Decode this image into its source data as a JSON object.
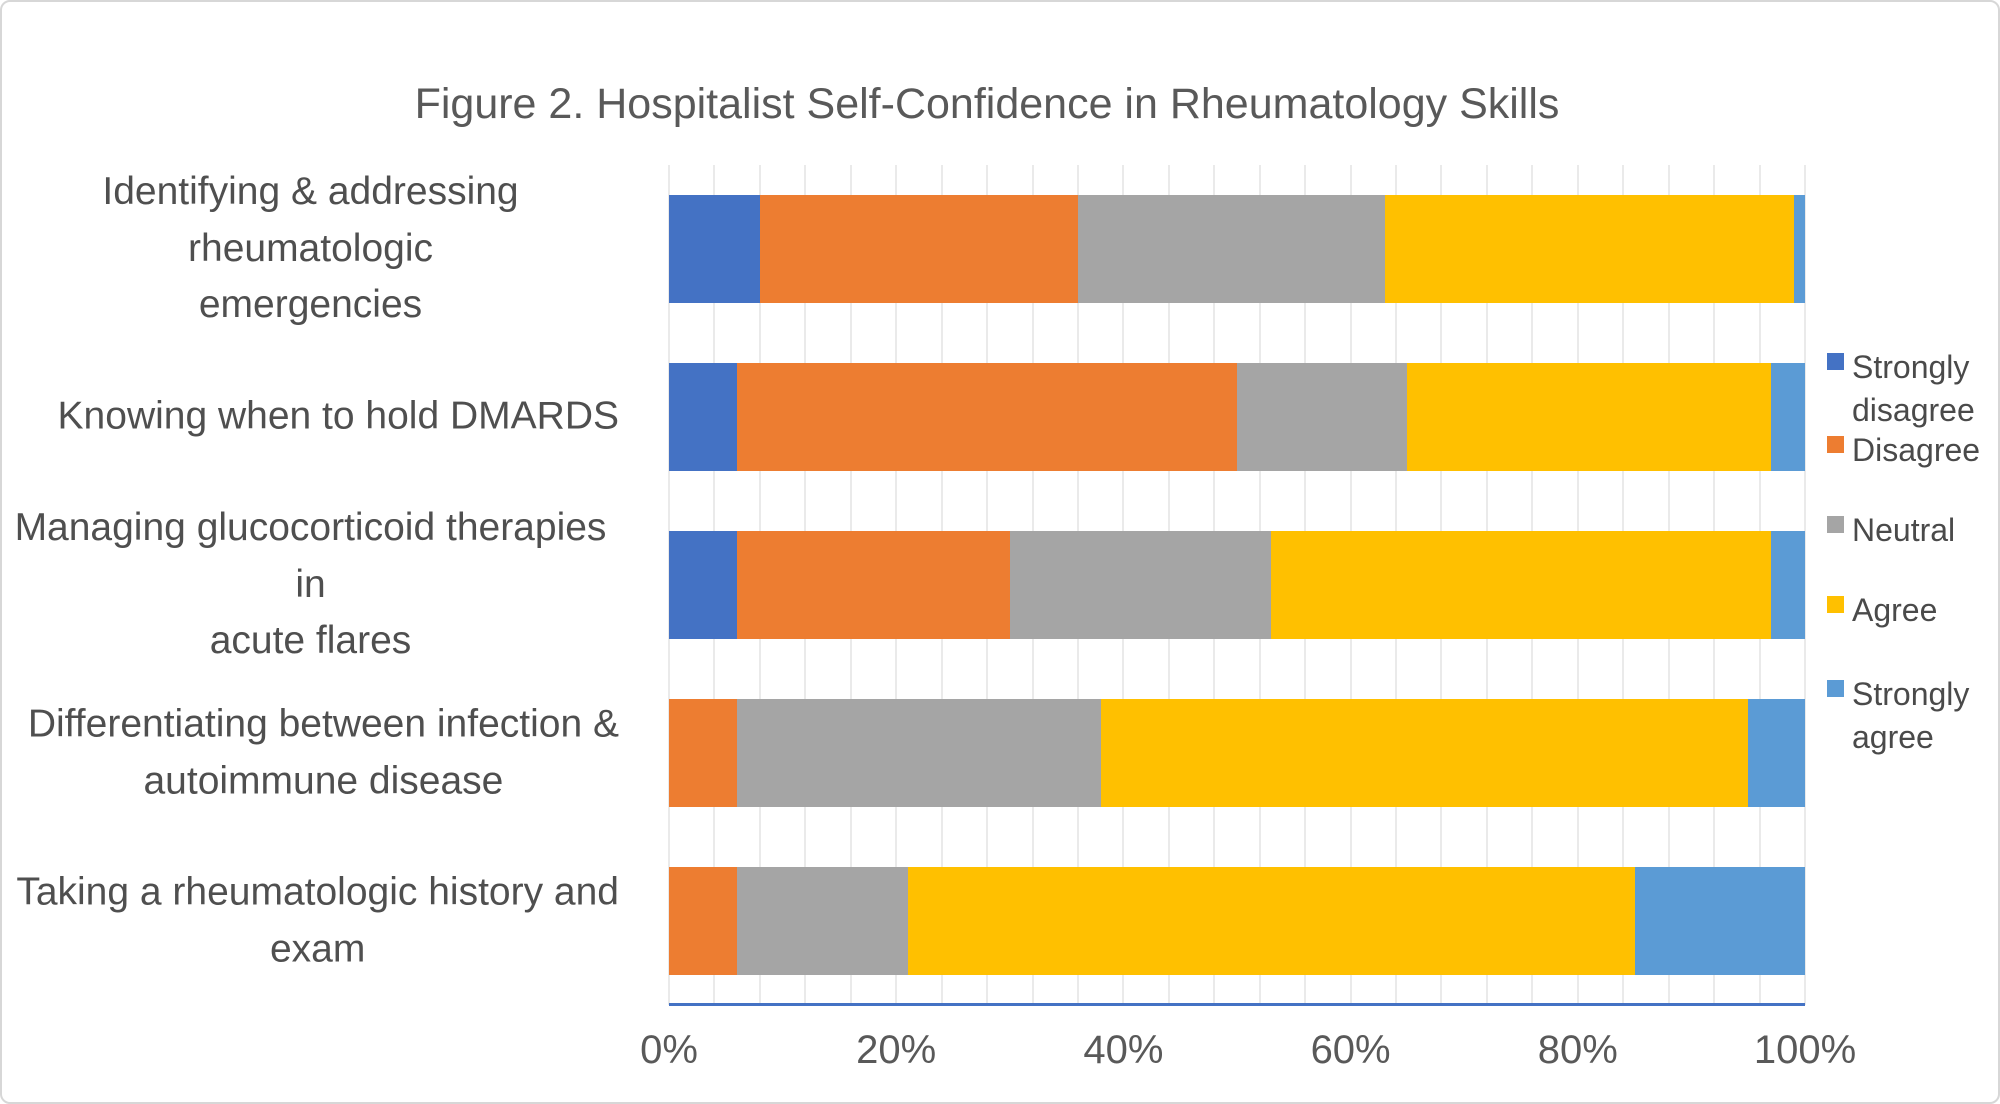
{
  "chart_data": {
    "type": "bar",
    "stacked": true,
    "orientation": "horizontal",
    "title": "Figure 2. Hospitalist Self-Confidence in Rheumatology Skills",
    "categories": [
      "Identifying & addressing rheumatologic emergencies",
      "Knowing when to hold DMARDS",
      "Managing glucocorticoid therapies in acute flares",
      "Differentiating between infection & autoimmune disease",
      "Taking a rheumatologic history and exam"
    ],
    "categories_wrapped": [
      [
        "Identifying & addressing rheumatologic",
        "emergencies"
      ],
      [
        "Knowing when to hold DMARDS"
      ],
      [
        "Managing glucocorticoid therapies in",
        "acute flares"
      ],
      [
        "Differentiating between infection &",
        "autoimmune disease"
      ],
      [
        "Taking a rheumatologic history and",
        "exam"
      ]
    ],
    "series": [
      {
        "name": "Strongly disagree",
        "color": "#4472c4",
        "values": [
          8,
          6,
          6,
          0,
          0
        ]
      },
      {
        "name": "Disagree",
        "color": "#ed7d31",
        "values": [
          28,
          44,
          24,
          6,
          6
        ]
      },
      {
        "name": "Neutral",
        "color": "#a5a5a5",
        "values": [
          27,
          15,
          23,
          32,
          15
        ]
      },
      {
        "name": "Agree",
        "color": "#ffc000",
        "values": [
          36,
          32,
          44,
          57,
          64
        ]
      },
      {
        "name": "Strongly agree",
        "color": "#5b9bd5",
        "values": [
          1,
          3,
          3,
          5,
          15
        ]
      }
    ],
    "x_axis": {
      "ticks": [
        "0%",
        "20%",
        "40%",
        "60%",
        "80%",
        "100%"
      ],
      "min": 0,
      "max": 100,
      "major_unit_pct": 20,
      "minor_gridline_unit_pct": 4,
      "axis_line_color": "#4472c4",
      "gridline_color": "#eaeaea"
    },
    "legend": {
      "position": "right",
      "entries_wrapped": [
        [
          "Strongly",
          "disagree"
        ],
        [
          "Disagree"
        ],
        [
          "Neutral"
        ],
        [
          "Agree"
        ],
        [
          "Strongly",
          "agree"
        ]
      ]
    }
  }
}
